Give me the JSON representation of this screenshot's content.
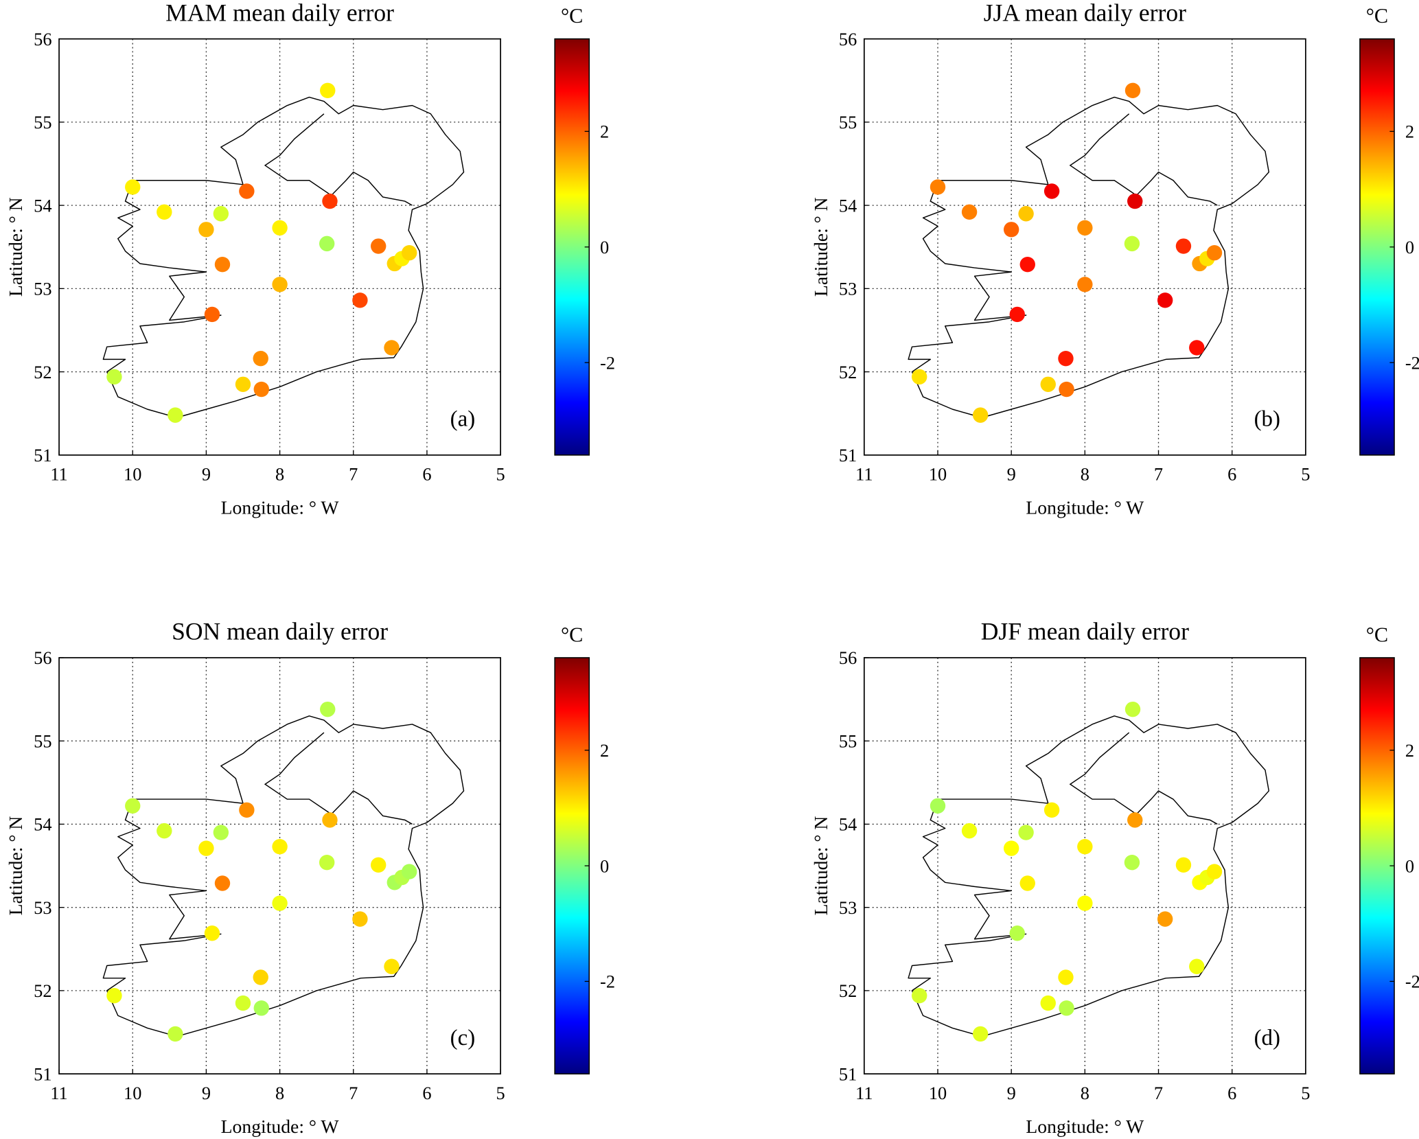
{
  "chart_data": {
    "type": "scatter",
    "unit_label": "°C",
    "xlabel": "Longitude: ° W",
    "ylabel": "Latitude: ° N",
    "xlim": [
      11,
      5
    ],
    "ylim": [
      51,
      56
    ],
    "xticks": [
      "11",
      "10",
      "9",
      "8",
      "7",
      "6",
      "5"
    ],
    "yticks": [
      "51",
      "52",
      "53",
      "54",
      "55",
      "56"
    ],
    "clim": [
      -3.6,
      3.6
    ],
    "cticks": [
      "2",
      "0",
      "-2"
    ],
    "grid": true,
    "stations": [
      [
        7.35,
        55.38
      ],
      [
        10.0,
        54.22
      ],
      [
        9.57,
        53.92
      ],
      [
        8.45,
        54.17
      ],
      [
        7.32,
        54.05
      ],
      [
        8.8,
        53.9
      ],
      [
        9.0,
        53.71
      ],
      [
        8.0,
        53.73
      ],
      [
        7.36,
        53.54
      ],
      [
        6.66,
        53.51
      ],
      [
        6.44,
        53.3
      ],
      [
        6.34,
        53.36
      ],
      [
        6.24,
        53.43
      ],
      [
        8.78,
        53.29
      ],
      [
        8.0,
        53.05
      ],
      [
        6.91,
        52.86
      ],
      [
        8.92,
        52.69
      ],
      [
        8.26,
        52.16
      ],
      [
        6.48,
        52.29
      ],
      [
        10.25,
        51.94
      ],
      [
        8.5,
        51.85
      ],
      [
        8.25,
        51.79
      ],
      [
        9.42,
        51.48
      ]
    ],
    "panels": [
      {
        "title": "MAM mean daily error",
        "tag": "(a)",
        "values": [
          1.0,
          1.0,
          1.0,
          2.0,
          2.3,
          0.6,
          1.4,
          1.0,
          0.3,
          1.9,
          1.2,
          1.0,
          1.2,
          1.8,
          1.4,
          2.2,
          2.0,
          1.7,
          1.6,
          0.5,
          1.2,
          1.8,
          0.6
        ]
      },
      {
        "title": "JJA mean daily error",
        "tag": "(b)",
        "values": [
          1.8,
          1.8,
          1.8,
          2.8,
          2.9,
          1.3,
          2.0,
          1.7,
          0.5,
          2.4,
          1.6,
          1.1,
          1.8,
          2.6,
          1.8,
          2.8,
          2.6,
          2.5,
          2.6,
          1.1,
          1.2,
          1.9,
          1.2
        ]
      },
      {
        "title": "SON mean daily error",
        "tag": "(c)",
        "values": [
          0.4,
          0.5,
          0.6,
          1.7,
          1.4,
          0.4,
          1.0,
          1.0,
          0.5,
          1.0,
          0.3,
          0.4,
          0.3,
          1.8,
          0.8,
          1.3,
          1.0,
          1.2,
          1.1,
          0.8,
          0.6,
          0.3,
          0.5
        ]
      },
      {
        "title": "DJF mean daily error",
        "tag": "(d)",
        "values": [
          0.5,
          0.3,
          0.8,
          1.0,
          1.6,
          0.5,
          0.9,
          1.0,
          0.4,
          1.0,
          0.9,
          0.8,
          1.0,
          1.0,
          0.9,
          1.6,
          0.4,
          1.0,
          0.8,
          0.6,
          0.8,
          0.4,
          0.7
        ]
      }
    ]
  }
}
